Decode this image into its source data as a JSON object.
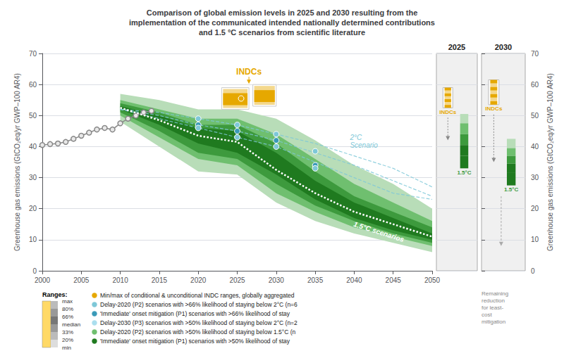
{
  "chart_data": {
    "type": "line",
    "title": "Comparison of global emission levels in 2025 and 2030 resulting from the\nimplementation of the communicated intended nationally determined contributions\nand 1.5 °C scenarios from scientific literature",
    "ylabel": "Greenhouse gas emissions (GtCO₂eq/yr GWP–100 AR4)",
    "y2label": "Greenhouse gas emissions (GtCO₂eq/yr GWP–100 AR4)",
    "xlim": [
      2000,
      2050
    ],
    "xticks": [
      2000,
      2005,
      2010,
      2015,
      2020,
      2025,
      2030,
      2035,
      2040,
      2045,
      2050
    ],
    "ylim": [
      0,
      70
    ],
    "yticks": [
      0,
      10,
      20,
      30,
      40,
      50,
      60,
      70
    ],
    "y2lim": [
      0,
      70
    ],
    "y2ticks": [
      0,
      10,
      20,
      30,
      40,
      50,
      60,
      70
    ],
    "grid": true,
    "series": [
      {
        "type": "band",
        "color": "#b8ddb8",
        "x": [
          2010,
          2015,
          2020,
          2025,
          2030,
          2035,
          2040,
          2045,
          2050
        ],
        "lower": [
          48,
          40,
          32,
          31,
          22,
          16,
          12,
          9,
          6
        ],
        "upper": [
          57,
          55,
          52,
          52,
          49,
          42,
          34,
          28,
          20
        ]
      },
      {
        "type": "band",
        "color": "#6fbf6f",
        "x": [
          2010,
          2015,
          2020,
          2025,
          2030,
          2035,
          2040,
          2045,
          2050
        ],
        "lower": [
          50,
          43,
          36,
          34,
          25,
          19,
          14,
          11,
          8
        ],
        "upper": [
          55,
          52,
          49,
          49,
          44,
          36,
          28,
          22,
          16
        ]
      },
      {
        "type": "band",
        "color": "#3d9a3d",
        "x": [
          2010,
          2015,
          2020,
          2025,
          2030,
          2035,
          2040,
          2045,
          2050
        ],
        "lower": [
          51,
          45,
          38,
          36,
          28,
          21,
          16,
          12,
          9
        ],
        "upper": [
          54,
          51,
          47,
          47,
          41,
          32,
          24,
          19,
          14
        ]
      },
      {
        "type": "band",
        "color": "#1f7a1f",
        "x": [
          2010,
          2015,
          2020,
          2025,
          2030,
          2035,
          2040,
          2045,
          2050
        ],
        "lower": [
          52,
          47,
          41,
          38,
          31,
          23,
          17,
          13,
          10
        ],
        "upper": [
          53,
          50,
          46,
          45,
          38,
          29,
          22,
          17,
          12
        ],
        "annotation": {
          "text": "1.5°C scenarios",
          "color": "#ffffff"
        }
      },
      {
        "color": "#ffffff",
        "line_style": "dotted",
        "x": [
          2010,
          2015,
          2020,
          2025,
          2030,
          2035,
          2040,
          2045,
          2050
        ],
        "values": [
          52.5,
          48.5,
          43.5,
          41.5,
          32.5,
          25.0,
          19.0,
          15.0,
          11.0
        ]
      },
      {
        "color": "#888888",
        "marker": "circle",
        "x": [
          2000,
          2001,
          2002,
          2003,
          2004,
          2005,
          2006,
          2007,
          2008,
          2009,
          2010,
          2011,
          2012,
          2013,
          2014
        ],
        "values": [
          40.5,
          40.8,
          41.0,
          41.5,
          42.5,
          43.5,
          44.5,
          45.5,
          46.0,
          45.5,
          47.5,
          49.0,
          50.0,
          51.0,
          51.5
        ]
      },
      {
        "color": "#7ec8d8",
        "line_style": "dashed",
        "x": [
          2010,
          2015,
          2020,
          2025,
          2030,
          2035,
          2040,
          2045,
          2050
        ],
        "values": [
          52,
          51,
          49,
          47,
          44,
          41,
          37,
          33,
          27
        ],
        "annotation": {
          "text": "2°C\nScenario",
          "color": "#7ec8d8"
        }
      },
      {
        "color": "#7ec8d8",
        "line_style": "dashed",
        "x": [
          2010,
          2015,
          2020,
          2025,
          2030,
          2035,
          2040,
          2045,
          2050
        ],
        "values": [
          52,
          50,
          47,
          45,
          42,
          38,
          34,
          29,
          24
        ]
      },
      {
        "color": "#7ec8d8",
        "line_style": "dashed",
        "x": [
          2010,
          2015,
          2020,
          2025,
          2030,
          2035,
          2040,
          2045,
          2050
        ],
        "values": [
          52,
          49,
          46,
          43,
          40,
          35,
          30,
          25,
          23
        ]
      },
      {
        "type": "scatter",
        "color": "#7ec8d8",
        "marker": "circle",
        "x": [
          2020,
          2025,
          2030,
          2035
        ],
        "values": [
          49,
          47,
          44,
          38.5
        ]
      },
      {
        "type": "scatter",
        "color": "#3a9ab8",
        "marker": "circle",
        "x": [
          2020,
          2025,
          2030,
          2035
        ],
        "values": [
          47,
          45,
          42,
          34
        ]
      },
      {
        "type": "scatter",
        "color": "#7ec8d8",
        "marker": "circle",
        "x": [
          2020,
          2025,
          2030,
          2035
        ],
        "values": [
          46,
          43,
          40,
          33
        ]
      },
      {
        "type": "range_bar",
        "color": "#e6a800",
        "bars": [
          {
            "x": 2023,
            "width": 3.5,
            "low": 52,
            "high": 59
          },
          {
            "x": 2027,
            "width": 3.0,
            "low": 53,
            "high": 60
          }
        ],
        "annotation": {
          "text": "INDCs",
          "color": "#e6a800"
        }
      },
      {
        "type": "scatter",
        "color": "#e6a800",
        "marker": "circle",
        "x": [
          2025.5
        ],
        "values": [
          55.5
        ]
      }
    ],
    "key": {
      "title": "Ranges:",
      "range_labels": [
        "max",
        "80%",
        "66%",
        "median",
        "33%",
        "20%",
        "min"
      ],
      "range_colors": [
        "#ffd966",
        "#dddddd",
        "#bbbbbb",
        "#999999",
        "#777777",
        "#999999",
        "#bbbbbb"
      ],
      "entries": [
        {
          "color": "#e6a800",
          "label": "Min/max of conditional & unconditional INDC ranges, globally aggregated"
        },
        {
          "color": "#7ec8d8",
          "label": "Delay-2020 (P2) scenarios with >66% likelihood of staying below 2°C (n=6"
        },
        {
          "color": "#3a9ab8",
          "label": "'Immediate' onset mitigation (P1) scenarios with >66% likelihood of stay"
        },
        {
          "color": "#aadeee",
          "label": "Delay-2030 (P3) scenarios with >50% likelihood of staying below 2°C (n=2"
        },
        {
          "color": "#6fbf6f",
          "label": "Delay-2020 (P2) scenarios with >50% likelihood of staying below 1.5°C (n"
        },
        {
          "color": "#1f7a1f",
          "label": "'Immediate' onset mitigation (P1) scenarios with >50% likelihood of stay"
        }
      ]
    },
    "panels": [
      {
        "title": "2025",
        "indc": {
          "low": 52.5,
          "high": 59.0,
          "color": "#e6a800",
          "label": "INDCs"
        },
        "arrow_to": 42.0,
        "segments": [
          {
            "low": 47.5,
            "high": 50.5,
            "color": "#b8ddb8"
          },
          {
            "low": 44.0,
            "high": 47.5,
            "color": "#6fbf6f"
          },
          {
            "low": 40.5,
            "high": 44.0,
            "color": "#3d9a3d"
          },
          {
            "low": 37.0,
            "high": 40.5,
            "color": "#1f7a1f"
          },
          {
            "low": 33.0,
            "high": 37.0,
            "color": "#1f7a1f"
          }
        ],
        "segments_label": {
          "text": "1.5°C",
          "color": "#3d9a3d"
        }
      },
      {
        "title": "2030",
        "indc": {
          "low": 53.5,
          "high": 61.5,
          "color": "#e6a800",
          "label": "INDCs"
        },
        "arrow_to": 35.0,
        "segments": [
          {
            "low": 39.5,
            "high": 42.5,
            "color": "#b8ddb8"
          },
          {
            "low": 37.0,
            "high": 39.5,
            "color": "#6fbf6f"
          },
          {
            "low": 34.5,
            "high": 37.0,
            "color": "#3d9a3d"
          },
          {
            "low": 31.5,
            "high": 34.5,
            "color": "#1f7a1f"
          },
          {
            "low": 27.5,
            "high": 31.5,
            "color": "#1f7a1f"
          }
        ],
        "segments_label": {
          "text": "1.5°C",
          "color": "#3d9a3d"
        },
        "reduction": {
          "from": 24.0,
          "to": 8.0,
          "text": "Remaining\nreduction\nfor least-\ncost\nmitigation"
        }
      }
    ]
  }
}
